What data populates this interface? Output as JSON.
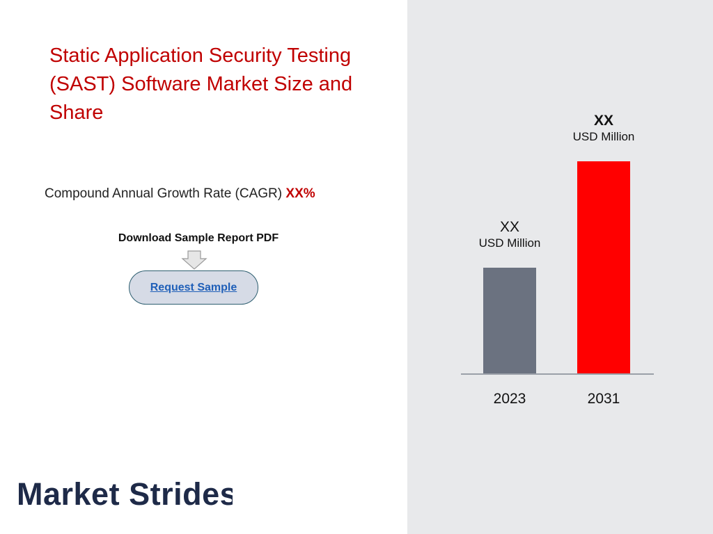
{
  "title": "Static Application Security Testing (SAST) Software Market Size and Share",
  "cagr": {
    "label": "Compound Annual Growth Rate (CAGR)",
    "value": "XX%"
  },
  "download": {
    "label": "Download Sample Report PDF",
    "button_label": "Request Sample"
  },
  "chart_data": {
    "type": "bar",
    "categories": [
      "2023",
      "2031"
    ],
    "values": [
      2.5,
      5
    ],
    "value_labels": [
      {
        "value": "XX",
        "unit": "USD Million"
      },
      {
        "value": "XX",
        "unit": "USD Million"
      }
    ],
    "colors": [
      "#6b7280",
      "#ff0000"
    ]
  },
  "logo_text": "Market Strides",
  "colors": {
    "accent": "#c00000",
    "panel": "#e8e9eb",
    "link": "#1f5fb8"
  }
}
